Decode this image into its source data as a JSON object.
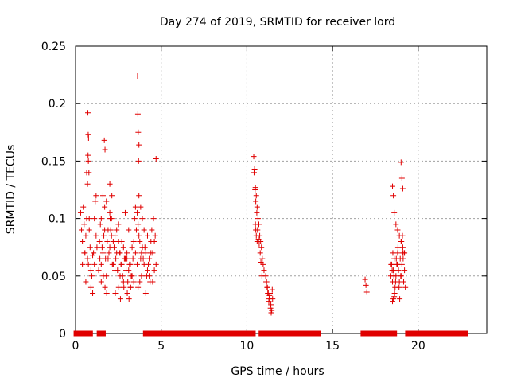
{
  "chart_data": {
    "type": "scatter",
    "title": "Day 274 of 2019, SRMTID for receiver lord",
    "xlabel": "GPS time / hours",
    "ylabel": "SRMTID / TECUs",
    "xlim": [
      0,
      24
    ],
    "ylim": [
      0,
      0.25
    ],
    "grid": true,
    "marker": "+",
    "colors": {
      "points": "#e00000",
      "axes": "#000000",
      "grid": "#a0a0a0"
    },
    "xticks": [
      0,
      5,
      10,
      15,
      20
    ],
    "xtick_labels": [
      "0",
      "5",
      "10",
      "15",
      "20"
    ],
    "yticks": [
      0,
      0.05,
      0.1,
      0.15,
      0.2,
      0.25
    ],
    "ytick_labels": [
      "0",
      "0.05",
      "0.1",
      "0.15",
      "0.2",
      "0.25"
    ],
    "series": [
      {
        "name": "SRMTID",
        "x": [
          0.3,
          0.35,
          0.4,
          0.45,
          0.5,
          0.55,
          0.6,
          0.65,
          0.7,
          0.75,
          0.8,
          0.85,
          0.9,
          0.95,
          1.0,
          1.05,
          1.1,
          1.15,
          1.2,
          1.25,
          0.4,
          0.6,
          0.8,
          1.0,
          1.2,
          0.5,
          0.7,
          0.9,
          1.1,
          0.65,
          1.4,
          1.5,
          1.6,
          1.7,
          1.8,
          1.9,
          2.0,
          2.1,
          2.2,
          2.3,
          2.4,
          2.5,
          2.6,
          2.7,
          2.8,
          2.9,
          3.0,
          3.1,
          3.2,
          3.3,
          1.45,
          1.55,
          1.65,
          1.75,
          1.85,
          1.95,
          2.05,
          2.15,
          2.25,
          2.35,
          2.45,
          2.55,
          2.65,
          2.75,
          2.85,
          2.95,
          3.05,
          3.15,
          3.25,
          3.35,
          1.5,
          1.7,
          1.9,
          2.1,
          2.3,
          2.5,
          2.7,
          2.9,
          3.1,
          3.3,
          1.6,
          1.8,
          2.0,
          2.2,
          2.4,
          2.6,
          2.8,
          3.0,
          3.2,
          3.4,
          1.35,
          1.42,
          1.5,
          1.62,
          1.72,
          1.82,
          2.02,
          2.12,
          2.32,
          2.52,
          2.62,
          2.82,
          3.02,
          3.12,
          3.22,
          3.4,
          3.5,
          3.6,
          3.7,
          3.8,
          3.9,
          4.0,
          4.1,
          4.2,
          4.3,
          4.4,
          4.5,
          4.6,
          4.7,
          3.45,
          3.55,
          3.65,
          3.75,
          3.85,
          3.95,
          4.05,
          4.15,
          4.25,
          4.35,
          4.45,
          4.55,
          4.65,
          3.5,
          3.6,
          3.7,
          3.8,
          3.9,
          4.0,
          4.2,
          4.4,
          4.6,
          3.65,
          3.75,
          3.85,
          4.1,
          4.3,
          4.5,
          0.72,
          0.74,
          0.76,
          0.73,
          0.75,
          0.78,
          1.68,
          1.72,
          2.0,
          3.62,
          3.64,
          3.66,
          3.7,
          3.68,
          4.7,
          10.4,
          10.45,
          10.5,
          10.55,
          10.6,
          10.65,
          10.7,
          10.75,
          10.8,
          10.85,
          10.9,
          10.95,
          11.0,
          10.42,
          10.48,
          10.52,
          10.58,
          10.62,
          10.68,
          10.72,
          10.78,
          10.82,
          10.88,
          11.1,
          11.15,
          11.2,
          11.25,
          11.3,
          11.35,
          11.4,
          11.45,
          11.5,
          11.12,
          11.18,
          11.22,
          11.28,
          11.32,
          11.38,
          11.42,
          11.48,
          10.5,
          10.52,
          10.55,
          10.6,
          16.9,
          16.95,
          17.0,
          18.4,
          18.45,
          18.5,
          18.55,
          18.6,
          18.65,
          18.7,
          18.75,
          18.8,
          18.85,
          18.9,
          18.95,
          19.0,
          19.05,
          19.1,
          19.15,
          19.2,
          19.25,
          18.42,
          18.48,
          18.52,
          18.58,
          18.62,
          18.68,
          18.72,
          18.78,
          18.82,
          18.88,
          18.92,
          18.98,
          19.02,
          19.08,
          19.12,
          19.18,
          18.5,
          18.55,
          18.6,
          18.7,
          18.8,
          18.9,
          19.0,
          19.1,
          19.2,
          18.5,
          18.6,
          19.0,
          19.05,
          19.1,
          18.55
        ],
        "y": [
          0.105,
          0.09,
          0.08,
          0.11,
          0.095,
          0.07,
          0.085,
          0.1,
          0.065,
          0.06,
          0.09,
          0.075,
          0.055,
          0.05,
          0.068,
          0.07,
          0.1,
          0.115,
          0.085,
          0.075,
          0.06,
          0.045,
          0.1,
          0.035,
          0.12,
          0.07,
          0.13,
          0.04,
          0.06,
          0.14,
          0.08,
          0.06,
          0.07,
          0.09,
          0.05,
          0.065,
          0.075,
          0.085,
          0.06,
          0.055,
          0.07,
          0.08,
          0.05,
          0.06,
          0.045,
          0.065,
          0.07,
          0.055,
          0.06,
          0.05,
          0.095,
          0.075,
          0.085,
          0.065,
          0.08,
          0.07,
          0.09,
          0.06,
          0.075,
          0.065,
          0.055,
          0.07,
          0.06,
          0.05,
          0.065,
          0.055,
          0.045,
          0.06,
          0.05,
          0.065,
          0.1,
          0.11,
          0.09,
          0.1,
          0.085,
          0.095,
          0.08,
          0.105,
          0.09,
          0.075,
          0.12,
          0.115,
          0.105,
          0.08,
          0.09,
          0.07,
          0.075,
          0.065,
          0.04,
          0.045,
          0.055,
          0.065,
          0.045,
          0.05,
          0.04,
          0.035,
          0.1,
          0.12,
          0.035,
          0.04,
          0.03,
          0.04,
          0.035,
          0.03,
          0.04,
          0.08,
          0.07,
          0.06,
          0.085,
          0.065,
          0.075,
          0.06,
          0.07,
          0.055,
          0.065,
          0.08,
          0.07,
          0.055,
          0.06,
          0.1,
          0.09,
          0.095,
          0.08,
          0.07,
          0.065,
          0.075,
          0.05,
          0.06,
          0.045,
          0.09,
          0.1,
          0.085,
          0.11,
          0.105,
          0.12,
          0.11,
          0.1,
          0.09,
          0.085,
          0.07,
          0.08,
          0.04,
          0.045,
          0.05,
          0.035,
          0.05,
          0.045,
          0.192,
          0.173,
          0.17,
          0.155,
          0.15,
          0.14,
          0.168,
          0.16,
          0.13,
          0.224,
          0.191,
          0.175,
          0.164,
          0.15,
          0.152,
          0.154,
          0.143,
          0.127,
          0.12,
          0.11,
          0.1,
          0.095,
          0.085,
          0.08,
          0.075,
          0.065,
          0.06,
          0.055,
          0.14,
          0.125,
          0.115,
          0.105,
          0.09,
          0.082,
          0.078,
          0.07,
          0.062,
          0.05,
          0.05,
          0.045,
          0.04,
          0.035,
          0.03,
          0.035,
          0.025,
          0.02,
          0.03,
          0.045,
          0.04,
          0.035,
          0.028,
          0.033,
          0.022,
          0.018,
          0.038,
          0.095,
          0.09,
          0.085,
          0.08,
          0.047,
          0.042,
          0.036,
          0.05,
          0.06,
          0.045,
          0.055,
          0.065,
          0.04,
          0.05,
          0.06,
          0.07,
          0.055,
          0.045,
          0.065,
          0.05,
          0.06,
          0.07,
          0.045,
          0.055,
          0.04,
          0.06,
          0.055,
          0.07,
          0.05,
          0.035,
          0.045,
          0.065,
          0.06,
          0.075,
          0.04,
          0.03,
          0.05,
          0.08,
          0.085,
          0.065,
          0.07,
          0.128,
          0.12,
          0.105,
          0.095,
          0.09,
          0.085,
          0.08,
          0.075,
          0.07,
          0.028,
          0.032,
          0.149,
          0.135,
          0.126,
          0.03
        ]
      },
      {
        "name": "SRMTID zero-level",
        "ranges": [
          [
            0.05,
            0.85
          ],
          [
            1.4,
            1.6
          ],
          [
            4.1,
            4.25
          ],
          [
            4.45,
            4.6
          ],
          [
            4.85,
            10.35
          ],
          [
            10.85,
            11.3
          ],
          [
            11.55,
            14.15
          ],
          [
            16.8,
            18.6
          ],
          [
            19.4,
            22.75
          ]
        ]
      }
    ]
  }
}
